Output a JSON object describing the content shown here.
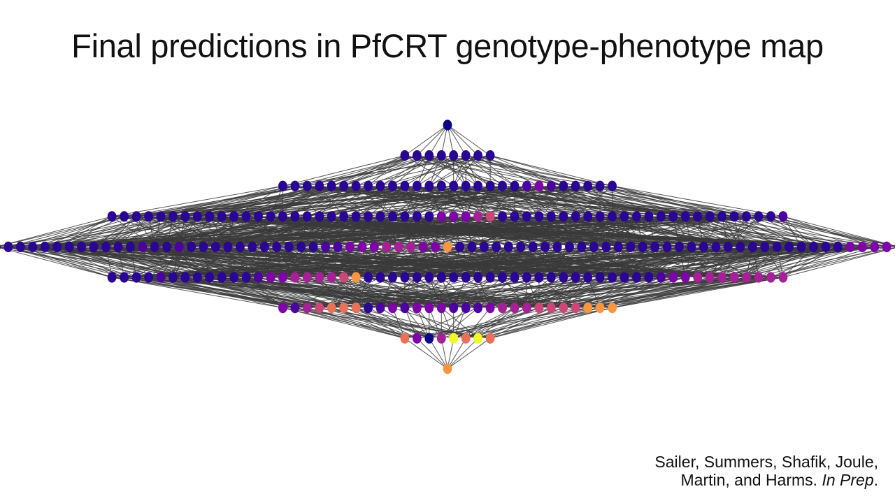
{
  "title": "Final predictions in PfCRT genotype-phenotype map",
  "citation": {
    "line1": "Sailer, Summers, Shafik, Joule,",
    "line2_prefix": "Martin, and Harms.",
    "line2_italic": "In Prep",
    "line2_suffix": "."
  },
  "colors": {
    "edge": "#3a3a3a",
    "palette": [
      "#0d0887",
      "#2b0594",
      "#4c02a1",
      "#7e03a8",
      "#a62098",
      "#cc4778",
      "#e97158",
      "#f89540",
      "#f0f921"
    ]
  },
  "layers": [
    {
      "level": 0,
      "colors": [
        0
      ]
    },
    {
      "level": 1,
      "colors": [
        1,
        1,
        1,
        1,
        1,
        1,
        1,
        1
      ]
    },
    {
      "level": 2,
      "colors": [
        1,
        1,
        1,
        1,
        1,
        1,
        1,
        1,
        1,
        1,
        1,
        1,
        1,
        1,
        1,
        1,
        1,
        1,
        1,
        1,
        2,
        3,
        2,
        1,
        1,
        1,
        1,
        1
      ]
    },
    {
      "level": 3,
      "colors": [
        1,
        1,
        1,
        1,
        1,
        1,
        1,
        1,
        1,
        1,
        1,
        1,
        1,
        1,
        1,
        1,
        1,
        1,
        1,
        1,
        1,
        1,
        1,
        1,
        1,
        1,
        1,
        3,
        3,
        3,
        4,
        5,
        1,
        1,
        1,
        1,
        1,
        1,
        1,
        1,
        1,
        1,
        1,
        1,
        1,
        1,
        1,
        1,
        1,
        1,
        1,
        1,
        1,
        1,
        1,
        2
      ]
    },
    {
      "level": 4,
      "colors": [
        1,
        1,
        1,
        1,
        1,
        1,
        1,
        1,
        1,
        1,
        1,
        1,
        2,
        1,
        1,
        2,
        1,
        1,
        1,
        1,
        1,
        1,
        1,
        1,
        1,
        1,
        1,
        2,
        2,
        3,
        3,
        3,
        4,
        4,
        4,
        3,
        3,
        7,
        1,
        1,
        1,
        1,
        1,
        1,
        1,
        1,
        1,
        1,
        1,
        1,
        1,
        1,
        1,
        1,
        1,
        1,
        1,
        1,
        1,
        1,
        1,
        1,
        1,
        1,
        1,
        1,
        1,
        1,
        1,
        1,
        3,
        3,
        3,
        3,
        3
      ]
    },
    {
      "level": 5,
      "colors": [
        1,
        1,
        1,
        1,
        2,
        1,
        1,
        1,
        1,
        1,
        1,
        1,
        2,
        3,
        3,
        4,
        4,
        4,
        4,
        5,
        7,
        1,
        1,
        1,
        1,
        1,
        1,
        1,
        1,
        1,
        1,
        1,
        1,
        1,
        1,
        1,
        1,
        1,
        1,
        1,
        1,
        1,
        1,
        1,
        1,
        2,
        3,
        3,
        4,
        4,
        4,
        4,
        4,
        4,
        4,
        4
      ]
    },
    {
      "level": 6,
      "colors": [
        3,
        2,
        4,
        5,
        6,
        6,
        6,
        1,
        2,
        3,
        2,
        3,
        3,
        3,
        2,
        2,
        2,
        3,
        4,
        4,
        4,
        5,
        5,
        5,
        5,
        7,
        7,
        7
      ]
    },
    {
      "level": 7,
      "colors": [
        6,
        3,
        0,
        4,
        8,
        6,
        8,
        6
      ]
    },
    {
      "level": 8,
      "colors": [
        7
      ]
    }
  ]
}
